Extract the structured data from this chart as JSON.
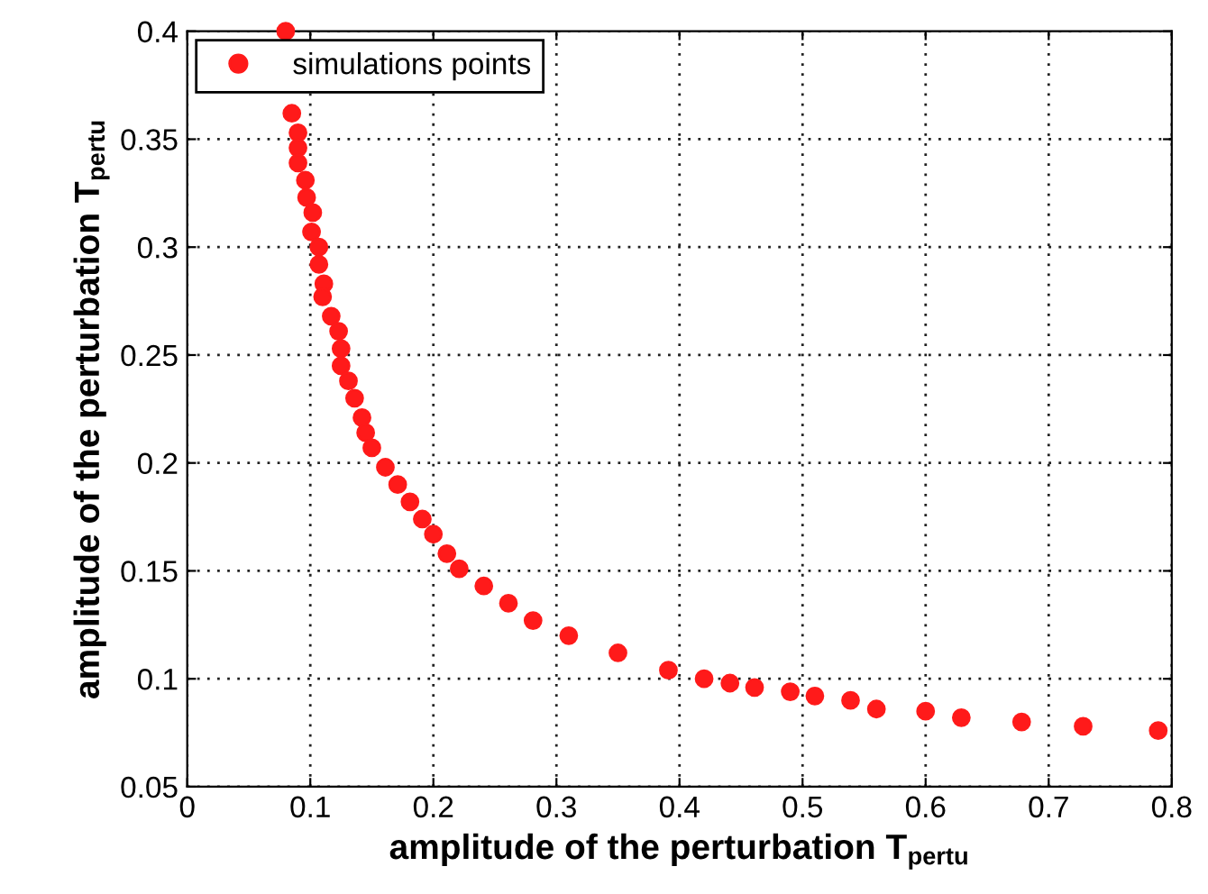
{
  "chart_data": {
    "type": "scatter",
    "xlabel": "amplitude of the perturbation T$_{pertu}$",
    "ylabel": "amplitude of the perturbation T$_{pertu}$",
    "series": [
      {
        "name": "simulations points",
        "color": "#ff1a1a",
        "x": [
          0.08,
          0.085,
          0.09,
          0.09,
          0.09,
          0.096,
          0.097,
          0.102,
          0.101,
          0.107,
          0.107,
          0.111,
          0.11,
          0.117,
          0.123,
          0.125,
          0.125,
          0.131,
          0.136,
          0.142,
          0.145,
          0.15,
          0.161,
          0.171,
          0.181,
          0.191,
          0.2,
          0.211,
          0.221,
          0.241,
          0.261,
          0.281,
          0.31,
          0.35,
          0.391,
          0.42,
          0.441,
          0.461,
          0.49,
          0.51,
          0.539,
          0.56,
          0.6,
          0.629,
          0.678,
          0.728,
          0.789
        ],
        "values": [
          0.4,
          0.362,
          0.353,
          0.346,
          0.339,
          0.331,
          0.323,
          0.316,
          0.307,
          0.3,
          0.292,
          0.283,
          0.277,
          0.268,
          0.261,
          0.253,
          0.245,
          0.238,
          0.23,
          0.221,
          0.214,
          0.207,
          0.198,
          0.19,
          0.182,
          0.174,
          0.167,
          0.158,
          0.151,
          0.143,
          0.135,
          0.127,
          0.12,
          0.112,
          0.104,
          0.1,
          0.098,
          0.096,
          0.094,
          0.092,
          0.09,
          0.086,
          0.085,
          0.082,
          0.08,
          0.078,
          0.076
        ]
      }
    ],
    "xlim": [
      0,
      0.8
    ],
    "xticks": [
      0,
      0.1,
      0.2,
      0.3,
      0.4,
      0.5,
      0.6,
      0.7,
      0.8
    ],
    "ylim": [
      0.05,
      0.4
    ],
    "yticks": [
      0.05,
      0.1,
      0.15,
      0.2,
      0.25,
      0.3,
      0.35,
      0.4
    ],
    "grid": true,
    "legend": "top left",
    "marker": "circle"
  }
}
